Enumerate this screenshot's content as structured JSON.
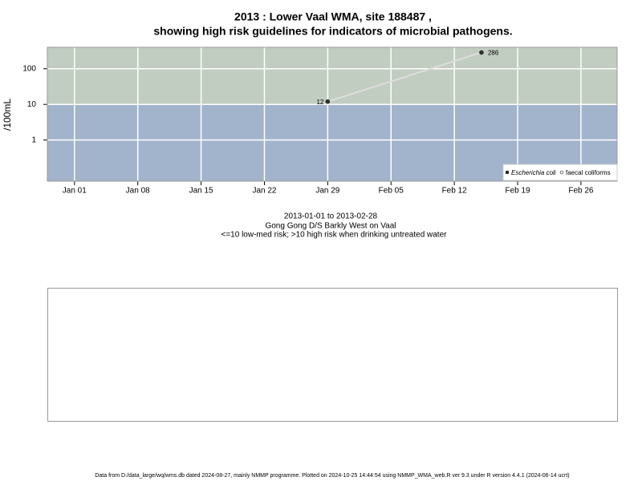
{
  "chart_data": {
    "type": "line",
    "title": [
      "2013 : Lower Vaal WMA, site 188487 ,",
      "showing high risk guidelines for indicators of microbial pathogens."
    ],
    "y_label": "/100mL",
    "subtitle": [
      "2013-01-01 to 2013-02-28",
      "Gong Gong D/S Barkly West on Vaal",
      "<=10 low-med risk; >10 high risk when drinking untreated water"
    ],
    "x": [
      "2013-01-29",
      "2013-02-15"
    ],
    "series": [
      {
        "name": "Escherichia coli",
        "color": "#333333",
        "line_color": "#dddddd",
        "values": [
          12,
          286
        ],
        "value_labels": [
          "12",
          "286"
        ]
      },
      {
        "name": "faecal coliforms",
        "color": "#ffffff",
        "values": [
          null,
          null
        ]
      }
    ],
    "xlim": [
      "2012-12-29",
      "2013-03-02"
    ],
    "xticks": [
      {
        "value": "2013-01-01",
        "label": "Jan 01"
      },
      {
        "value": "2013-01-08",
        "label": "Jan 08"
      },
      {
        "value": "2013-01-15",
        "label": "Jan 15"
      },
      {
        "value": "2013-01-22",
        "label": "Jan 22"
      },
      {
        "value": "2013-01-29",
        "label": "Jan 29"
      },
      {
        "value": "2013-02-05",
        "label": "Feb 05"
      },
      {
        "value": "2013-02-12",
        "label": "Feb 12"
      },
      {
        "value": "2013-02-19",
        "label": "Feb 19"
      },
      {
        "value": "2013-02-26",
        "label": "Feb 26"
      }
    ],
    "ylim": [
      0.07,
      400
    ],
    "yticks": [
      1,
      10,
      100
    ],
    "log_y": true,
    "grid": true,
    "threshold": 10,
    "band_colors": {
      "high": "#c2cdc2",
      "low": "#a2b3cc"
    },
    "legend": "bottom-right",
    "footer": "Data from D:/data_large/wq/wms.db dated 2024-08-27, mainly NMMP programme. Plotted on 2024-10-25 14:44:54 using NMMP_WMA_web.R ver 9.3 under R version 4.4.1 (2024-06-14 ucrt)"
  }
}
